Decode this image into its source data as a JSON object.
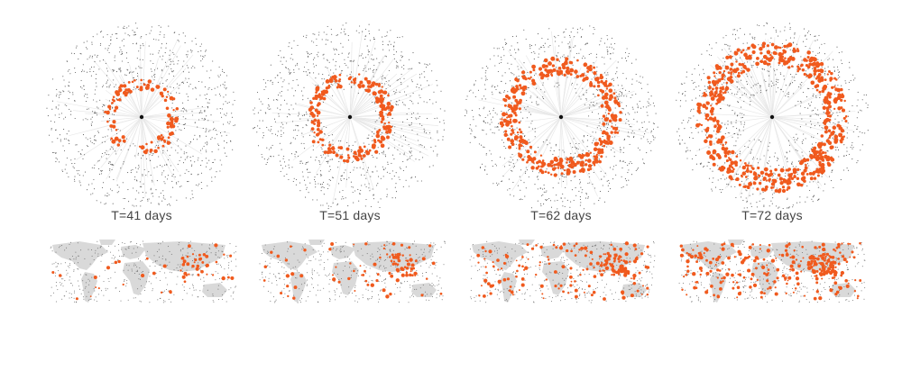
{
  "figure": {
    "panels": [
      {
        "label": "T=41 days",
        "infected_fraction": 0.12
      },
      {
        "label": "T=51 days",
        "infected_fraction": 0.25
      },
      {
        "label": "T=62 days",
        "infected_fraction": 0.55
      },
      {
        "label": "T=72 days",
        "infected_fraction": 0.85
      }
    ],
    "colors": {
      "infected": "#f05a1e",
      "uninfected": "#555555",
      "spokes": "#e8e8e8",
      "land": "#d9d9d9",
      "center": "#111111"
    }
  }
}
